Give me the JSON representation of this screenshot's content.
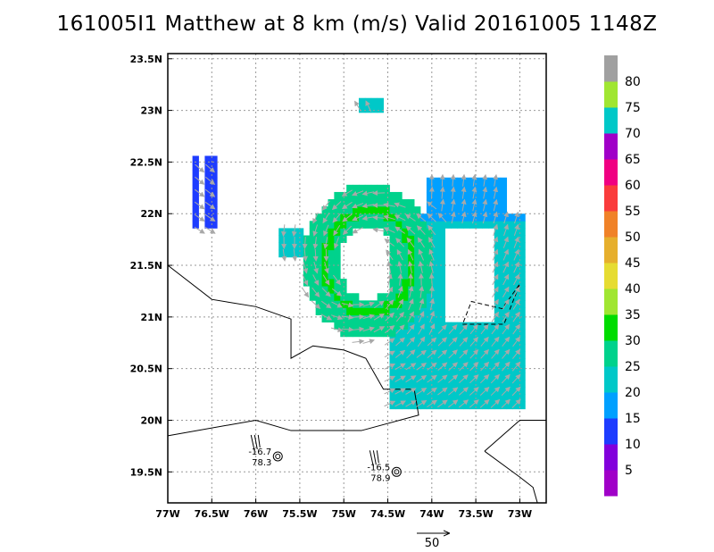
{
  "title": "161005I1 Matthew at 8 km (m/s) Valid 20161005 1148Z",
  "chart_data": {
    "type": "heatmap",
    "title": "161005I1 Matthew at 8 km (m/s) Valid 20161005 1148Z",
    "variable": "wind speed (m/s) at 8 km",
    "storm": "Matthew",
    "valid": "20161005 1148Z",
    "x_ticks": [
      {
        "value": -77.0,
        "label": "77W"
      },
      {
        "value": -76.5,
        "label": "76.5W"
      },
      {
        "value": -76.0,
        "label": "76W"
      },
      {
        "value": -75.5,
        "label": "75.5W"
      },
      {
        "value": -75.0,
        "label": "75W"
      },
      {
        "value": -74.5,
        "label": "74.5W"
      },
      {
        "value": -74.0,
        "label": "74W"
      },
      {
        "value": -73.5,
        "label": "73.5W"
      },
      {
        "value": -73.0,
        "label": "73W"
      }
    ],
    "y_ticks": [
      {
        "value": 19.5,
        "label": "19.5N"
      },
      {
        "value": 20.0,
        "label": "20N"
      },
      {
        "value": 20.5,
        "label": "20.5N"
      },
      {
        "value": 21.0,
        "label": "21N"
      },
      {
        "value": 21.5,
        "label": "21.5N"
      },
      {
        "value": 22.0,
        "label": "22N"
      },
      {
        "value": 22.5,
        "label": "22.5N"
      },
      {
        "value": 23.0,
        "label": "23N"
      },
      {
        "value": 23.5,
        "label": "23.5N"
      }
    ],
    "xlim": [
      -77.0,
      -72.7
    ],
    "ylim": [
      19.2,
      23.55
    ],
    "grid": true,
    "colorbar": {
      "labels": [
        "5",
        "10",
        "15",
        "20",
        "25",
        "30",
        "35",
        "40",
        "45",
        "50",
        "55",
        "60",
        "65",
        "70",
        "75",
        "80"
      ],
      "levels": [
        0,
        5,
        10,
        15,
        20,
        25,
        30,
        35,
        40,
        45,
        50,
        55,
        60,
        65,
        70,
        75,
        80,
        85
      ],
      "colors": [
        "#a000c8",
        "#8200dc",
        "#1e3cff",
        "#00a0ff",
        "#00c8c8",
        "#00d28c",
        "#00dc00",
        "#a0e632",
        "#e6dc32",
        "#e6af2d",
        "#f08228",
        "#fa3c3c",
        "#f00082",
        "#a000c8",
        "#00c8c8",
        "#a0e632",
        "#a0a0a0"
      ]
    },
    "stations": [
      {
        "lon": -75.75,
        "lat": 19.65,
        "label_top": "-16.7",
        "label_bottom": "78.3"
      },
      {
        "lon": -74.4,
        "lat": 19.5,
        "label_top": "-16.5",
        "label_bottom": "78.9"
      }
    ],
    "vector_scale_label": "50"
  }
}
